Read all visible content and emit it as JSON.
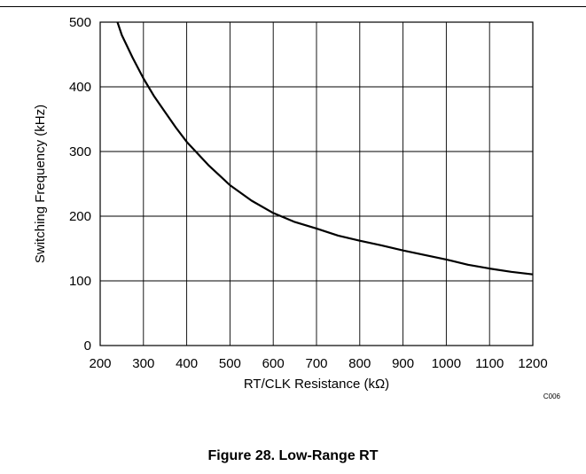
{
  "chart_data": {
    "type": "line",
    "xlabel": "RT/CLK Resistance (kΩ)",
    "ylabel": "Switching Frequency (kHz)",
    "xlim": [
      200,
      1200
    ],
    "ylim": [
      0,
      500
    ],
    "x_ticks": [
      "200",
      "300",
      "400",
      "500",
      "600",
      "700",
      "800",
      "900",
      "1000",
      "1100",
      "1200"
    ],
    "y_ticks": [
      "0",
      "100",
      "200",
      "300",
      "400",
      "500"
    ],
    "grid": true,
    "legend": "none",
    "code_label": "C006",
    "series": [
      {
        "color": "#000000",
        "x": [
          240,
          250,
          275,
          300,
          325,
          350,
          375,
          400,
          450,
          500,
          550,
          600,
          650,
          700,
          750,
          800,
          850,
          900,
          950,
          1000,
          1050,
          1100,
          1150,
          1200
        ],
        "y": [
          500,
          480,
          445,
          413,
          385,
          361,
          337,
          315,
          279,
          248,
          224,
          205,
          191,
          181,
          170,
          162,
          155,
          147,
          140,
          133,
          125,
          119,
          114,
          110
        ]
      }
    ]
  },
  "caption": "Figure 28. Low-Range RT"
}
